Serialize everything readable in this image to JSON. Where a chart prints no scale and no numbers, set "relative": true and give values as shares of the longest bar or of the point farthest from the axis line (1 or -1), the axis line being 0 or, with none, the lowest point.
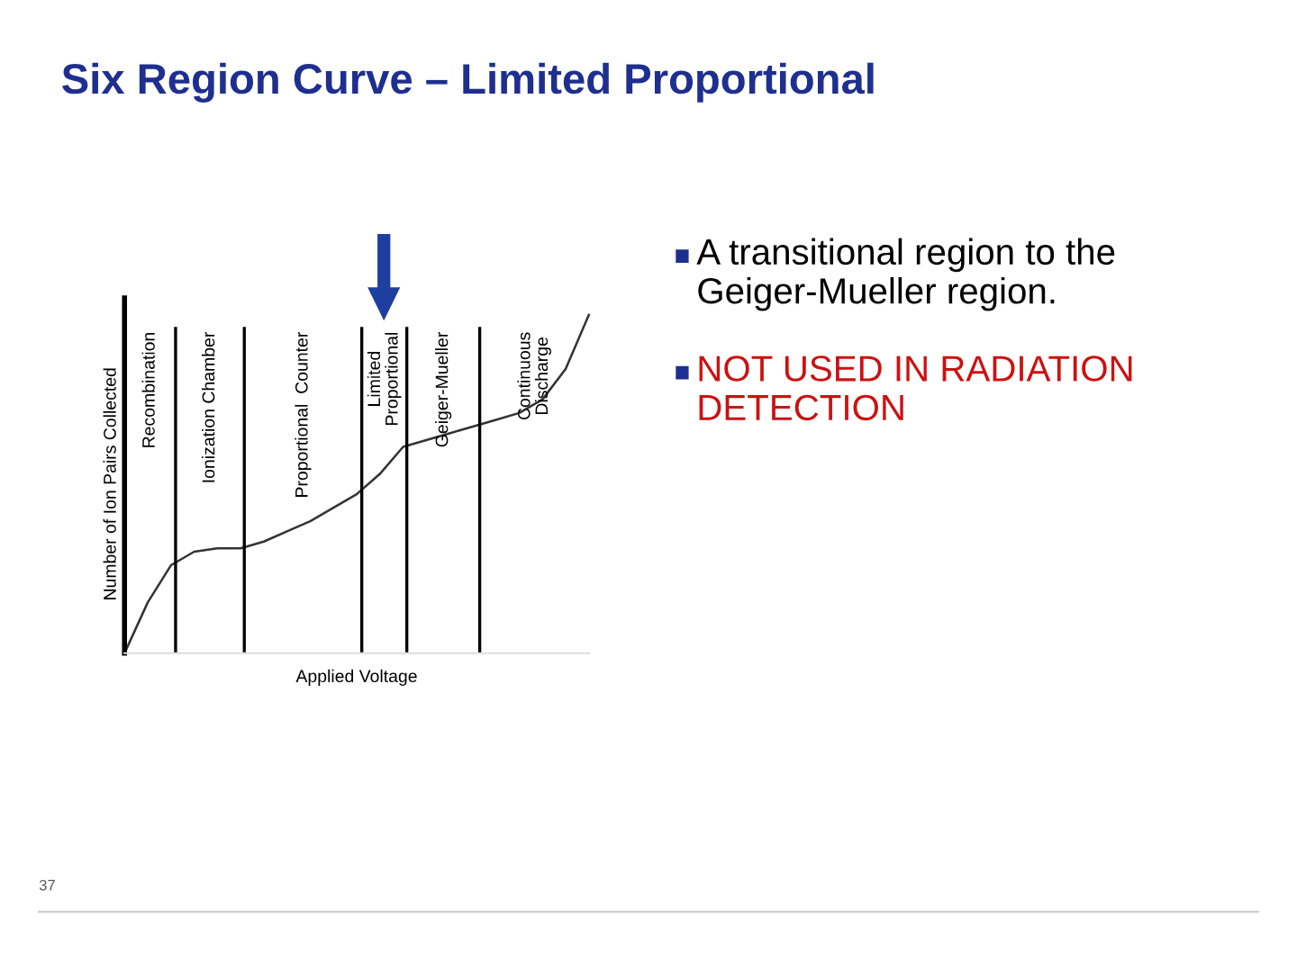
{
  "chart_data": {
    "type": "line",
    "title": "Six Region Curve – Limited Proportional",
    "xlabel": "Applied Voltage",
    "ylabel": "Number of Ion Pairs Collected",
    "relative": true,
    "categories": [
      null,
      null,
      null,
      null,
      null,
      null,
      null,
      null,
      null,
      null,
      null,
      null,
      null,
      null,
      null,
      null,
      null,
      null,
      null,
      null,
      null
    ],
    "series": [
      {
        "color": "#333333",
        "values": [
          0,
          0.15,
          0.26,
          0.3,
          0.31,
          0.31,
          0.33,
          0.36,
          0.39,
          0.43,
          0.47,
          0.53,
          0.61,
          0.63,
          0.65,
          0.67,
          0.69,
          0.71,
          0.75,
          0.84,
          1
        ]
      }
    ],
    "annotations": [
      "A transitional region to the Geiger-Mueller region.",
      "NOT USED IN RADIATION DETECTION",
      "37",
      "Recombination",
      "Ionization Chamber",
      "Proportional  Counter",
      "Limited\nProportional",
      "Geiger-Mueller",
      "Continuous\nDischarge"
    ]
  }
}
